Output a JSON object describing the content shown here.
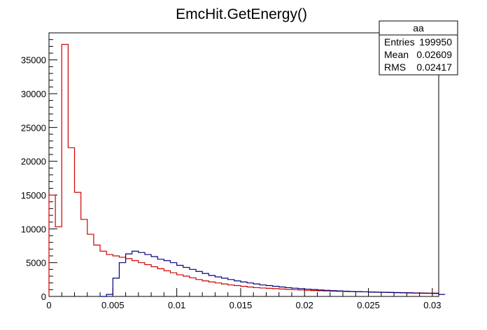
{
  "chart_data": {
    "type": "histogram",
    "title": "EmcHit.GetEnergy()",
    "xlim": [
      0,
      0.0305
    ],
    "ylim": [
      0,
      39000
    ],
    "xtick_labels": [
      {
        "v": 0,
        "label": "0"
      },
      {
        "v": 0.005,
        "label": "0.005"
      },
      {
        "v": 0.01,
        "label": "0.01"
      },
      {
        "v": 0.015,
        "label": "0.015"
      },
      {
        "v": 0.02,
        "label": "0.02"
      },
      {
        "v": 0.025,
        "label": "0.025"
      },
      {
        "v": 0.03,
        "label": "0.03"
      }
    ],
    "ytick_labels": [
      {
        "v": 0,
        "label": "0"
      },
      {
        "v": 5000,
        "label": "5000"
      },
      {
        "v": 10000,
        "label": "10000"
      },
      {
        "v": 15000,
        "label": "15000"
      },
      {
        "v": 20000,
        "label": "20000"
      },
      {
        "v": 25000,
        "label": "25000"
      },
      {
        "v": 30000,
        "label": "30000"
      },
      {
        "v": 35000,
        "label": "35000"
      }
    ],
    "bin_width": 0.0005,
    "series": [
      {
        "color": "#cc0000",
        "x_start": 0,
        "values": [
          15000,
          10300,
          37300,
          22000,
          15400,
          11400,
          9200,
          7600,
          6700,
          6200,
          6000,
          5800,
          5600,
          5300,
          5000,
          4700,
          4400,
          4100,
          3800,
          3500,
          3200,
          3000,
          2750,
          2500,
          2300,
          2150,
          2000,
          1850,
          1700,
          1600,
          1500,
          1400,
          1300,
          1250,
          1200,
          1150,
          1100,
          1050,
          1000,
          950,
          900,
          870,
          840,
          810,
          780,
          760,
          740,
          720,
          700,
          680,
          660,
          640,
          620,
          600,
          580,
          560,
          540,
          520,
          510,
          500,
          490
        ]
      },
      {
        "color": "#000080",
        "x_start": 0.004,
        "values": [
          0,
          300,
          2700,
          5000,
          6300,
          6700,
          6500,
          6200,
          5900,
          5500,
          5300,
          5000,
          4600,
          4300,
          4000,
          3700,
          3400,
          3100,
          2900,
          2700,
          2500,
          2300,
          2150,
          2000,
          1850,
          1700,
          1600,
          1500,
          1400,
          1300,
          1220,
          1150,
          1080,
          1020,
          960,
          910,
          860,
          820,
          780,
          740,
          710,
          680,
          650,
          620,
          600,
          580,
          560,
          540,
          520,
          500,
          480,
          460,
          440,
          300
        ]
      }
    ]
  },
  "stats_box": {
    "name": "aa",
    "rows": [
      {
        "label": "Entries",
        "value": "199950"
      },
      {
        "label": "Mean",
        "value": "0.02609"
      },
      {
        "label": "RMS",
        "value": "0.02417"
      }
    ]
  }
}
